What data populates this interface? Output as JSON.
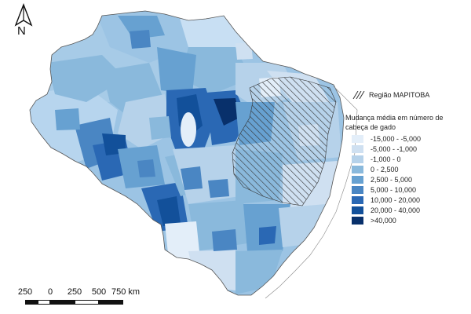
{
  "north_arrow": {
    "label": "N",
    "icon": "north-arrow-icon"
  },
  "mapitoba": {
    "label": "Região MAPITOBA",
    "icon": "hatch-pattern-icon"
  },
  "legend": {
    "title": "Mudança média em número de cabeça de gado",
    "classes": [
      {
        "label": "-15,000 - -5,000",
        "color": "#e3eef9"
      },
      {
        "label": "-5,000 - -1,000",
        "color": "#cfe0f1"
      },
      {
        "label": "-1,000 - 0",
        "color": "#b6d2ea"
      },
      {
        "label": "0 - 2,500",
        "color": "#8ab9dc"
      },
      {
        "label": "2,500 - 5,000",
        "color": "#67a1d1"
      },
      {
        "label": "5,000 - 10,000",
        "color": "#4a86c3"
      },
      {
        "label": "10,000 - 20,000",
        "color": "#2a68b4"
      },
      {
        "label": "20,000 - 40,000",
        "color": "#12509a"
      },
      {
        "label": ">40,000",
        "color": "#08306b"
      }
    ]
  },
  "scale_bar": {
    "labels": [
      "250",
      "0",
      "250",
      "500",
      "750 km"
    ]
  },
  "colors": {
    "background": "#ffffff",
    "hatch": "#333333",
    "border": "#555555"
  }
}
